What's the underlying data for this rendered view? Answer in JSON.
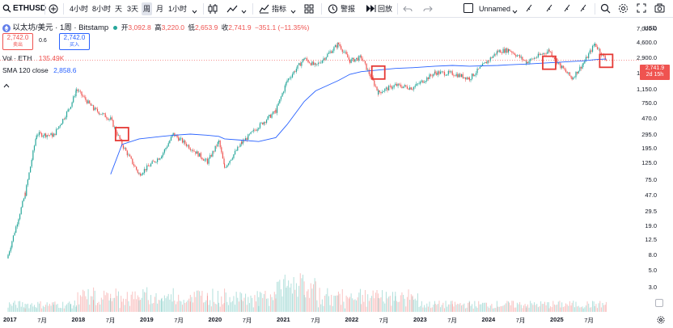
{
  "toolbar": {
    "symbol": "ETHUSD",
    "intervals": [
      "4小时",
      "8小时",
      "天",
      "3天",
      "周",
      "月",
      "1小时"
    ],
    "indicators_label": "指标",
    "alert_label": "警报",
    "replay_label": "回放",
    "layout_name": "Unnamed"
  },
  "legend": {
    "title": "以太坊/美元 · 1周 · Bitstamp",
    "ohlc_open_label": "开",
    "ohlc_open": "3,092.8",
    "ohlc_high_label": "高",
    "ohlc_high": "3,220.0",
    "ohlc_low_label": "低",
    "ohlc_low": "2,653.9",
    "ohlc_close_label": "收",
    "ohlc_close": "2,741.9",
    "ohlc_change": "−351.1 (−11.35%)",
    "sell_price": "2,742.0",
    "sell_label": "卖出",
    "spread": "0.6",
    "buy_price": "2,742.0",
    "buy_label": "买入",
    "vol_label": "Vol · ETH",
    "vol_value": "135.49K",
    "sma_label": "SMA 120 close",
    "sma_value": "2,858.6"
  },
  "axis": {
    "currency": "USD",
    "y_ticks": [
      "7,000.0",
      "4,600.0",
      "2,900.0",
      "1,850.0",
      "1,150.0",
      "750.0",
      "470.0",
      "295.0",
      "195.0",
      "125.0",
      "75.0",
      "47.0",
      "29.5",
      "19.0",
      "12.5",
      "8.0",
      "5.0",
      "3.0"
    ],
    "x_ticks": [
      {
        "label": "2017",
        "year": true
      },
      {
        "label": "7月",
        "year": false
      },
      {
        "label": "2018",
        "year": true
      },
      {
        "label": "7月",
        "year": false
      },
      {
        "label": "2019",
        "year": true
      },
      {
        "label": "7月",
        "year": false
      },
      {
        "label": "2020",
        "year": true
      },
      {
        "label": "7月",
        "year": false
      },
      {
        "label": "2021",
        "year": true
      },
      {
        "label": "7月",
        "year": false
      },
      {
        "label": "2022",
        "year": true
      },
      {
        "label": "7月",
        "year": false
      },
      {
        "label": "2023",
        "year": true
      },
      {
        "label": "7月",
        "year": false
      },
      {
        "label": "2024",
        "year": true
      },
      {
        "label": "7月",
        "year": false
      },
      {
        "label": "2025",
        "year": true
      },
      {
        "label": "7月",
        "year": false
      }
    ]
  },
  "price_tag": {
    "price": "2,741.9",
    "countdown": "2d 15h"
  },
  "colors": {
    "up": "#26a69a",
    "down": "#ef5350",
    "sma": "#2962ff",
    "highlight": "#e53935"
  },
  "chart_data": {
    "type": "candlestick",
    "symbol": "ETHUSD",
    "interval": "1W",
    "scale": "log",
    "x": [
      "2017-01",
      "2017-04",
      "2017-06",
      "2017-09",
      "2017-12",
      "2018-01",
      "2018-04",
      "2018-07",
      "2018-09",
      "2018-12",
      "2019-04",
      "2019-06",
      "2019-09",
      "2019-12",
      "2020-02",
      "2020-03",
      "2020-06",
      "2020-09",
      "2020-12",
      "2021-02",
      "2021-05",
      "2021-07",
      "2021-11",
      "2022-01",
      "2022-03",
      "2022-06",
      "2022-09",
      "2022-12",
      "2023-04",
      "2023-07",
      "2023-10",
      "2024-03",
      "2024-05",
      "2024-08",
      "2024-12",
      "2025-02",
      "2025-04",
      "2025-06",
      "2025-08",
      "2025-10"
    ],
    "close": [
      8,
      50,
      300,
      290,
      700,
      1150,
      640,
      470,
      220,
      90,
      160,
      300,
      200,
      130,
      240,
      110,
      230,
      380,
      600,
      1500,
      2900,
      2300,
      4500,
      2700,
      3000,
      1050,
      1300,
      1200,
      1900,
      1850,
      1600,
      3600,
      3750,
      2600,
      3700,
      2300,
      1600,
      2500,
      4500,
      2742
    ],
    "sma_120": [
      null,
      null,
      null,
      null,
      null,
      null,
      null,
      90,
      220,
      260,
      280,
      290,
      300,
      290,
      280,
      260,
      250,
      240,
      270,
      400,
      800,
      1100,
      1500,
      1800,
      1950,
      2050,
      2150,
      2200,
      2300,
      2350,
      2300,
      2350,
      2400,
      2450,
      2550,
      2600,
      2650,
      2700,
      2800,
      2858.6
    ],
    "ylim": [
      3,
      7000
    ]
  }
}
